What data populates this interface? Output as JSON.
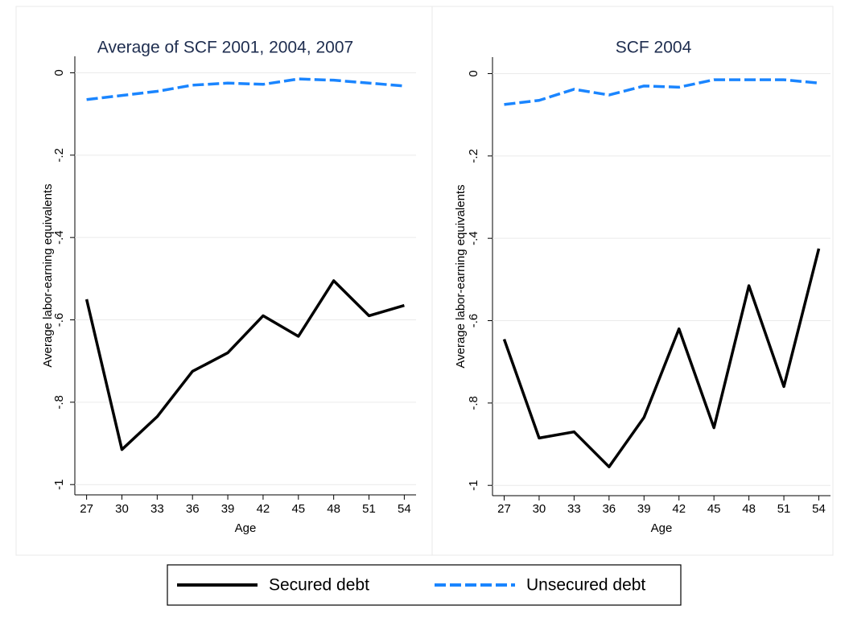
{
  "chart_data": [
    {
      "type": "line",
      "title": "Average of SCF 2001, 2004, 2007",
      "xlabel": "Age",
      "ylabel": "Average labor-earning equivalents",
      "x": [
        27,
        30,
        33,
        36,
        39,
        42,
        45,
        48,
        51,
        54
      ],
      "xlim": [
        26,
        55
      ],
      "xticks": [
        27,
        30,
        33,
        36,
        39,
        42,
        45,
        48,
        51,
        54
      ],
      "ylim": [
        -1.025,
        0.04
      ],
      "yticks": [
        0,
        {
          "value": -0.2,
          "label": "-.2"
        },
        {
          "value": -0.4,
          "label": "-.4"
        },
        {
          "value": -0.6,
          "label": "-.6"
        },
        {
          "value": -0.8,
          "label": "-.8"
        },
        -1
      ],
      "grid": true,
      "series": [
        {
          "name": "Secured debt",
          "color": "#000000",
          "dash": "solid",
          "values": [
            -0.55,
            -0.915,
            -0.835,
            -0.725,
            -0.68,
            -0.59,
            -0.64,
            -0.505,
            -0.59,
            -0.565
          ]
        },
        {
          "name": "Unsecured debt",
          "color": "#1a85ff",
          "dash": "dashed",
          "values": [
            -0.065,
            -0.055,
            -0.045,
            -0.03,
            -0.025,
            -0.028,
            -0.015,
            -0.018,
            -0.025,
            -0.032
          ]
        }
      ]
    },
    {
      "type": "line",
      "title": "SCF 2004",
      "xlabel": "Age",
      "ylabel": "Average labor-earning equivalents",
      "x": [
        27,
        30,
        33,
        36,
        39,
        42,
        45,
        48,
        51,
        54
      ],
      "xlim": [
        26,
        55
      ],
      "xticks": [
        27,
        30,
        33,
        36,
        39,
        42,
        45,
        48,
        51,
        54
      ],
      "ylim": [
        -1.025,
        0.04
      ],
      "yticks": [
        0,
        {
          "value": -0.2,
          "label": "-.2"
        },
        {
          "value": -0.4,
          "label": "-.4"
        },
        {
          "value": -0.6,
          "label": "-.6"
        },
        {
          "value": -0.8,
          "label": "-.8"
        },
        -1
      ],
      "grid": true,
      "series": [
        {
          "color": "#000000",
          "dash": "solid",
          "values": [
            -0.645,
            -0.885,
            -0.87,
            -0.955,
            -0.835,
            -0.62,
            -0.86,
            -0.515,
            -0.76,
            -0.425
          ]
        },
        {
          "color": "#1a85ff",
          "dash": "dashed",
          "values": [
            -0.075,
            -0.065,
            -0.038,
            -0.052,
            -0.03,
            -0.033,
            -0.015,
            -0.015,
            -0.015,
            -0.023
          ]
        }
      ]
    }
  ]
}
